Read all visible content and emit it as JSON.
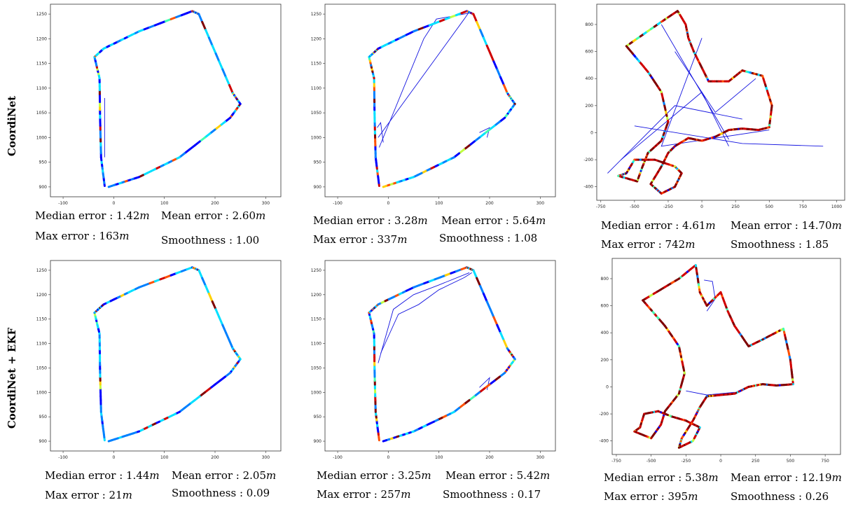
{
  "row_labels": [
    "CoordiNet",
    "CoordiNet + EKF"
  ],
  "colors": {
    "trajectory": "#1414e0",
    "jet": [
      "#00007f",
      "#0000ff",
      "#0080ff",
      "#00e0ff",
      "#40ffb0",
      "#c0ff40",
      "#ffd000",
      "#ff5000",
      "#d00000",
      "#7f0000"
    ]
  },
  "stat_labels": {
    "median": "Median error : ",
    "mean": "Mean error : ",
    "max": "Max error : ",
    "smooth": "Smoothness : ",
    "unit": "m"
  },
  "chart_data": [
    {
      "type": "scatter",
      "title": "",
      "xlabel": "",
      "ylabel": "",
      "xlim": [
        -125,
        330
      ],
      "ylim": [
        880,
        1270
      ],
      "xticks": [
        "-100",
        "0",
        "100",
        "200",
        "300"
      ],
      "yticks": [
        "900",
        "950",
        "1000",
        "1050",
        "1100",
        "1150",
        "1200",
        "1250"
      ],
      "path": [
        [
          -18,
          902
        ],
        [
          -25,
          960
        ],
        [
          -27,
          1040
        ],
        [
          -28,
          1120
        ],
        [
          -38,
          1163
        ],
        [
          -20,
          1180
        ],
        [
          50,
          1215
        ],
        [
          155,
          1256
        ],
        [
          168,
          1250
        ],
        [
          235,
          1090
        ],
        [
          250,
          1068
        ],
        [
          230,
          1040
        ],
        [
          130,
          960
        ],
        [
          50,
          920
        ],
        [
          -10,
          900
        ]
      ],
      "spikes": [
        [
          [
            -18,
            1080
          ],
          [
            -18,
            960
          ]
        ]
      ],
      "error_level": 0.2,
      "stats": {
        "median": "1.42",
        "mean": "2.60",
        "max": "163",
        "smooth": "1.00"
      }
    },
    {
      "type": "scatter",
      "title": "",
      "xlabel": "",
      "ylabel": "",
      "xlim": [
        -125,
        330
      ],
      "ylim": [
        880,
        1270
      ],
      "xticks": [
        "-100",
        "0",
        "100",
        "200",
        "300"
      ],
      "yticks": [
        "900",
        "950",
        "1000",
        "1050",
        "1100",
        "1150",
        "1200",
        "1250"
      ],
      "path": [
        [
          -18,
          902
        ],
        [
          -25,
          960
        ],
        [
          -27,
          1040
        ],
        [
          -28,
          1120
        ],
        [
          -38,
          1163
        ],
        [
          -20,
          1180
        ],
        [
          50,
          1215
        ],
        [
          155,
          1256
        ],
        [
          168,
          1250
        ],
        [
          235,
          1090
        ],
        [
          250,
          1068
        ],
        [
          230,
          1040
        ],
        [
          130,
          960
        ],
        [
          50,
          920
        ],
        [
          -10,
          900
        ]
      ],
      "spikes": [
        [
          [
            -18,
            980
          ],
          [
            70,
            1200
          ],
          [
            95,
            1240
          ],
          [
            160,
            1252
          ]
        ],
        [
          [
            -20,
            1000
          ],
          [
            150,
            1240
          ],
          [
            160,
            1255
          ]
        ],
        [
          [
            -22,
            1020
          ],
          [
            -15,
            1030
          ],
          [
            -10,
            990
          ]
        ],
        [
          [
            180,
            1010
          ],
          [
            200,
            1020
          ],
          [
            195,
            1000
          ]
        ]
      ],
      "error_level": 0.35,
      "stats": {
        "median": "3.28",
        "mean": "5.64",
        "max": "337",
        "smooth": "1.08"
      }
    },
    {
      "type": "scatter",
      "title": "",
      "xlabel": "",
      "ylabel": "",
      "xlim": [
        -780,
        1060
      ],
      "ylim": [
        -500,
        950
      ],
      "xticks": [
        "-750",
        "-500",
        "-250",
        "0",
        "250",
        "500",
        "750",
        "1000"
      ],
      "yticks": [
        "-400",
        "-200",
        "0",
        "200",
        "400",
        "600",
        "800"
      ],
      "path": [
        [
          -560,
          640
        ],
        [
          -300,
          820
        ],
        [
          -180,
          900
        ],
        [
          -120,
          800
        ],
        [
          -100,
          700
        ],
        [
          -60,
          600
        ],
        [
          0,
          480
        ],
        [
          50,
          380
        ],
        [
          200,
          380
        ],
        [
          300,
          460
        ],
        [
          450,
          420
        ],
        [
          520,
          200
        ],
        [
          500,
          40
        ],
        [
          420,
          20
        ],
        [
          300,
          30
        ],
        [
          200,
          20
        ],
        [
          100,
          -30
        ],
        [
          0,
          -60
        ],
        [
          -100,
          -40
        ],
        [
          -200,
          -100
        ],
        [
          -250,
          -150
        ],
        [
          -300,
          -250
        ],
        [
          -380,
          -380
        ],
        [
          -300,
          -450
        ],
        [
          -200,
          -400
        ],
        [
          -150,
          -300
        ],
        [
          -200,
          -250
        ],
        [
          -350,
          -200
        ],
        [
          -500,
          -200
        ],
        [
          -560,
          -300
        ],
        [
          -620,
          -320
        ],
        [
          -480,
          -360
        ],
        [
          -440,
          -250
        ],
        [
          -400,
          -150
        ],
        [
          -300,
          -60
        ],
        [
          -250,
          80
        ],
        [
          -300,
          300
        ],
        [
          -400,
          450
        ],
        [
          -560,
          640
        ]
      ],
      "spikes": [
        [
          [
            -500,
            50
          ],
          [
            300,
            -80
          ],
          [
            900,
            -100
          ]
        ],
        [
          [
            -200,
            600
          ],
          [
            100,
            150
          ],
          [
            400,
            400
          ]
        ],
        [
          [
            -600,
            -200
          ],
          [
            0,
            300
          ],
          [
            200,
            -100
          ]
        ],
        [
          [
            -300,
            800
          ],
          [
            200,
            -50
          ]
        ],
        [
          [
            0,
            700
          ],
          [
            -300,
            -100
          ],
          [
            500,
            20
          ]
        ],
        [
          [
            -700,
            -300
          ],
          [
            -200,
            200
          ],
          [
            300,
            100
          ]
        ]
      ],
      "error_level": 0.8,
      "stats": {
        "median": "4.61",
        "mean": "14.70",
        "max": "742",
        "smooth": "1.85"
      }
    },
    {
      "type": "scatter",
      "title": "",
      "xlabel": "",
      "ylabel": "",
      "xlim": [
        -125,
        330
      ],
      "ylim": [
        880,
        1270
      ],
      "xticks": [
        "-100",
        "0",
        "100",
        "200",
        "300"
      ],
      "yticks": [
        "900",
        "950",
        "1000",
        "1050",
        "1100",
        "1150",
        "1200",
        "1250"
      ],
      "path": [
        [
          -18,
          902
        ],
        [
          -25,
          960
        ],
        [
          -27,
          1040
        ],
        [
          -28,
          1120
        ],
        [
          -38,
          1163
        ],
        [
          -20,
          1180
        ],
        [
          50,
          1215
        ],
        [
          155,
          1256
        ],
        [
          168,
          1250
        ],
        [
          235,
          1090
        ],
        [
          250,
          1068
        ],
        [
          230,
          1040
        ],
        [
          130,
          960
        ],
        [
          50,
          920
        ],
        [
          -10,
          900
        ]
      ],
      "spikes": [],
      "error_level": 0.2,
      "stats": {
        "median": "1.44",
        "mean": "2.05",
        "max": "21",
        "smooth": "0.09"
      }
    },
    {
      "type": "scatter",
      "title": "",
      "xlabel": "",
      "ylabel": "",
      "xlim": [
        -125,
        330
      ],
      "ylim": [
        880,
        1270
      ],
      "xticks": [
        "-100",
        "0",
        "100",
        "200",
        "300"
      ],
      "yticks": [
        "900",
        "950",
        "1000",
        "1050",
        "1100",
        "1150",
        "1200",
        "1250"
      ],
      "path": [
        [
          -18,
          902
        ],
        [
          -25,
          960
        ],
        [
          -27,
          1040
        ],
        [
          -28,
          1120
        ],
        [
          -38,
          1163
        ],
        [
          -20,
          1180
        ],
        [
          50,
          1215
        ],
        [
          155,
          1256
        ],
        [
          168,
          1250
        ],
        [
          235,
          1090
        ],
        [
          250,
          1068
        ],
        [
          230,
          1040
        ],
        [
          130,
          960
        ],
        [
          50,
          920
        ],
        [
          -10,
          900
        ]
      ],
      "spikes": [
        [
          [
            -20,
            1060
          ],
          [
            10,
            1170
          ],
          [
            50,
            1200
          ],
          [
            100,
            1220
          ],
          [
            160,
            1245
          ]
        ],
        [
          [
            -15,
            1080
          ],
          [
            20,
            1160
          ],
          [
            60,
            1180
          ],
          [
            100,
            1210
          ],
          [
            150,
            1235
          ],
          [
            165,
            1245
          ]
        ],
        [
          [
            180,
            1010
          ],
          [
            200,
            1030
          ],
          [
            195,
            1005
          ]
        ]
      ],
      "error_level": 0.35,
      "stats": {
        "median": "3.25",
        "mean": "5.42",
        "max": "257",
        "smooth": "0.17"
      }
    },
    {
      "type": "scatter",
      "title": "",
      "xlabel": "",
      "ylabel": "",
      "xlim": [
        -780,
        860
      ],
      "ylim": [
        -500,
        950
      ],
      "xticks": [
        "-750",
        "-500",
        "-250",
        "0",
        "250",
        "500",
        "750"
      ],
      "yticks": [
        "-400",
        "-200",
        "0",
        "200",
        "400",
        "600",
        "800"
      ],
      "path": [
        [
          -560,
          640
        ],
        [
          -300,
          800
        ],
        [
          -180,
          900
        ],
        [
          -150,
          700
        ],
        [
          -100,
          600
        ],
        [
          0,
          700
        ],
        [
          50,
          560
        ],
        [
          100,
          450
        ],
        [
          200,
          300
        ],
        [
          300,
          350
        ],
        [
          450,
          430
        ],
        [
          500,
          200
        ],
        [
          520,
          20
        ],
        [
          400,
          10
        ],
        [
          300,
          20
        ],
        [
          200,
          0
        ],
        [
          100,
          -50
        ],
        [
          0,
          -60
        ],
        [
          -100,
          -70
        ],
        [
          -150,
          -150
        ],
        [
          -200,
          -250
        ],
        [
          -280,
          -380
        ],
        [
          -300,
          -450
        ],
        [
          -200,
          -400
        ],
        [
          -150,
          -300
        ],
        [
          -250,
          -250
        ],
        [
          -350,
          -220
        ],
        [
          -450,
          -180
        ],
        [
          -550,
          -200
        ],
        [
          -580,
          -300
        ],
        [
          -620,
          -330
        ],
        [
          -500,
          -380
        ],
        [
          -430,
          -280
        ],
        [
          -400,
          -180
        ],
        [
          -300,
          -50
        ],
        [
          -260,
          100
        ],
        [
          -300,
          300
        ],
        [
          -400,
          450
        ],
        [
          -560,
          640
        ]
      ],
      "spikes": [
        [
          [
            -120,
            790
          ],
          [
            -60,
            780
          ],
          [
            -40,
            650
          ],
          [
            -100,
            560
          ]
        ],
        [
          [
            -250,
            -30
          ],
          [
            -100,
            -60
          ],
          [
            100,
            -40
          ]
        ]
      ],
      "error_level": 0.8,
      "stats": {
        "median": "5.38",
        "mean": "12.19",
        "max": "395",
        "smooth": "0.26"
      }
    }
  ]
}
